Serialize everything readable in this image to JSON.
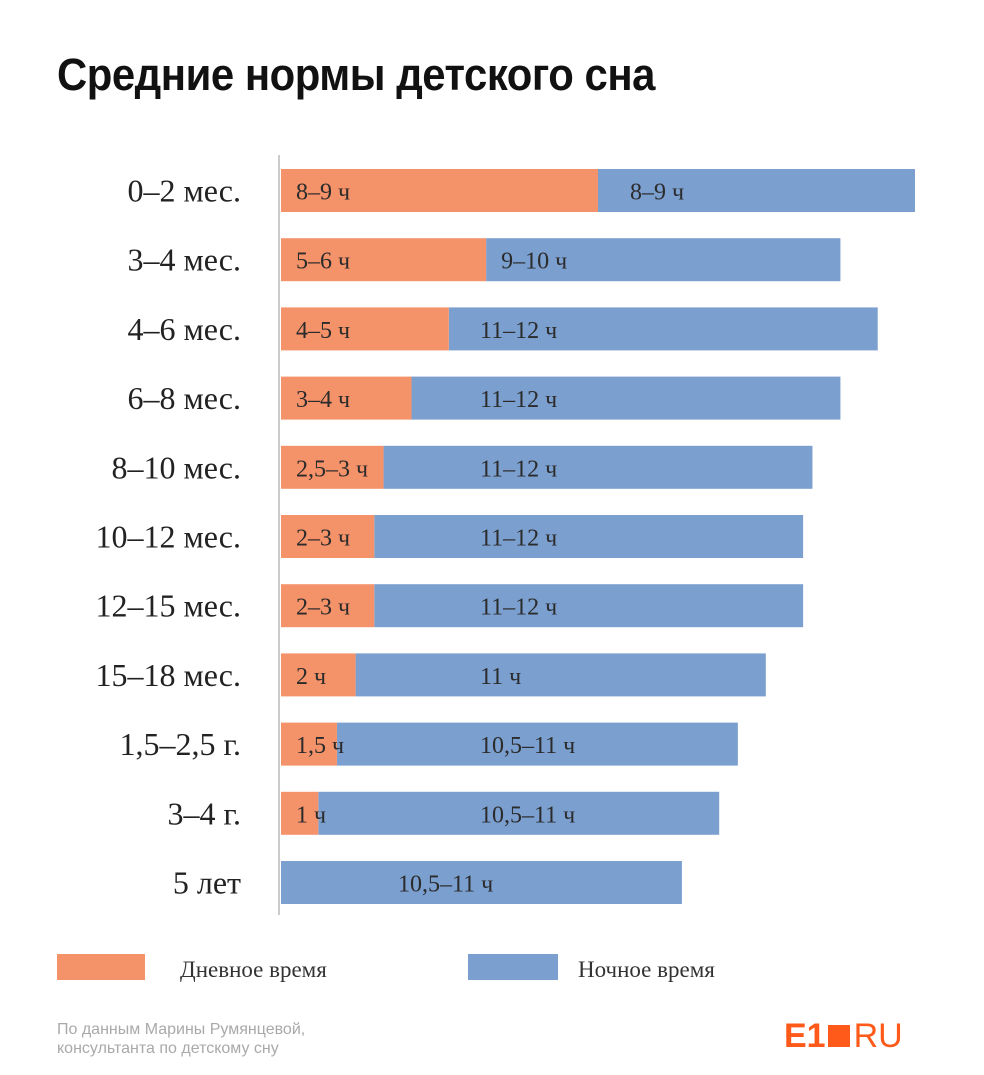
{
  "title": "Средние нормы детского сна",
  "colors": {
    "day": "#f4926a",
    "night": "#7b9fcf",
    "axis": "#cccccc"
  },
  "chart_data": {
    "type": "bar",
    "orientation": "horizontal",
    "stacked": true,
    "unit": "ч",
    "categories": [
      "0–2 мес.",
      "3–4 мес.",
      "4–6 мес.",
      "6–8 мес.",
      "8–10 мес.",
      "10–12 мес.",
      "12–15 мес.",
      "15–18 мес.",
      "1,5–2,5 г.",
      "3–4 г.",
      "5 лет"
    ],
    "series": [
      {
        "name": "Дневное время",
        "key": "day",
        "values": [
          8.5,
          5.5,
          4.5,
          3.5,
          2.75,
          2.5,
          2.5,
          2,
          1.5,
          1,
          0
        ],
        "labels": [
          "8–9 ч",
          "5–6 ч",
          "4–5 ч",
          "3–4 ч",
          "2,5–3 ч",
          "2–3 ч",
          "2–3 ч",
          "2 ч",
          "1,5 ч",
          "1 ч",
          ""
        ]
      },
      {
        "name": "Ночное время",
        "key": "night",
        "values": [
          8.5,
          9.5,
          11.5,
          11.5,
          11.5,
          11.5,
          11.5,
          11,
          10.75,
          10.75,
          10.75
        ],
        "labels": [
          "8–9 ч",
          "9–10 ч",
          "11–12 ч",
          "11–12 ч",
          "11–12 ч",
          "11–12 ч",
          "11–12 ч",
          "11 ч",
          "10,5–11 ч",
          "10,5–11 ч",
          "10,5–11 ч"
        ]
      }
    ],
    "xlim": [
      0,
      17
    ],
    "legend_position": "bottom-left"
  },
  "source": {
    "line1": "По данным Марины Румянцевой,",
    "line2": "консультанта по детскому сну"
  },
  "logo": {
    "left": "E1",
    "right": "RU"
  }
}
